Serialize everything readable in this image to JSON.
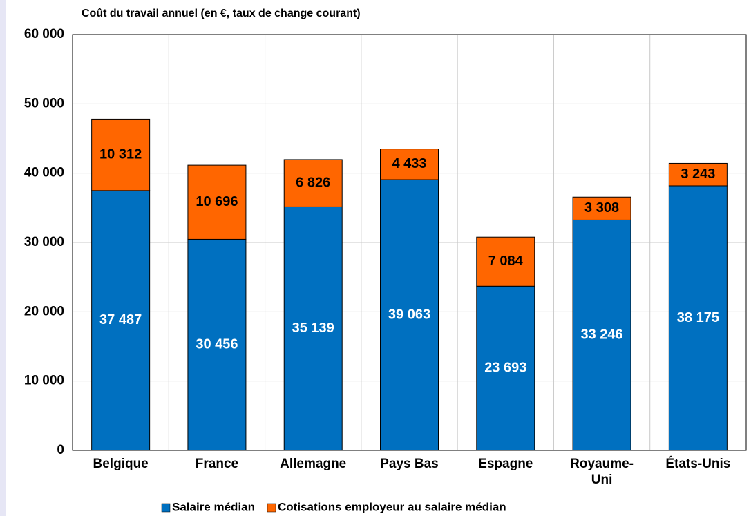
{
  "chart_data": {
    "type": "stacked_bar",
    "title": "Coût du travail annuel (en €, taux de change courant)",
    "categories": [
      "Belgique",
      "France",
      "Allemagne",
      "Pays Bas",
      "Espagne",
      "Royaume-Uni",
      "États-Unis"
    ],
    "series": [
      {
        "name": "Salaire médian",
        "color": "#0070c0",
        "values": [
          37487,
          30456,
          35139,
          39063,
          23693,
          33246,
          38175
        ],
        "value_labels": [
          "37 487",
          "30 456",
          "35 139",
          "39 063",
          "23 693",
          "33 246",
          "38 175"
        ]
      },
      {
        "name": "Cotisations employeur au salaire médian",
        "color": "#ff6600",
        "values": [
          10312,
          10696,
          6826,
          4433,
          7084,
          3308,
          3243
        ],
        "value_labels": [
          "10 312",
          "10 696",
          "6 826",
          "4 433",
          "7 084",
          "3 308",
          "3 243"
        ]
      }
    ],
    "ylim": [
      0,
      60000
    ],
    "yticks": [
      0,
      {
        "value": 10000,
        "label": "10 000"
      },
      {
        "value": 20000,
        "label": "20 000"
      },
      {
        "value": 30000,
        "label": "30 000"
      },
      {
        "value": 40000,
        "label": "40 000"
      },
      {
        "value": 50000,
        "label": "50 000"
      },
      {
        "value": 60000,
        "label": "60 000"
      }
    ],
    "grid": true,
    "legend": "bottom"
  }
}
